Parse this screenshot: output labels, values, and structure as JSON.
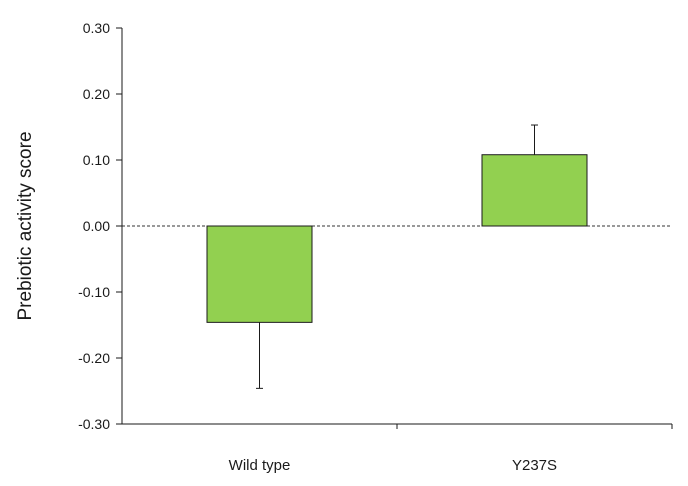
{
  "chart_data": {
    "type": "bar",
    "title": "",
    "xlabel": "",
    "ylabel": "Prebiotic activity score",
    "categories": [
      "Wild type",
      "Y237S"
    ],
    "values": [
      -0.146,
      0.108
    ],
    "error_bars": [
      0.1,
      0.045
    ],
    "ylim": [
      -0.3,
      0.3
    ],
    "yticks": [
      -0.3,
      -0.2,
      -0.1,
      0.0,
      0.1,
      0.2,
      0.3
    ],
    "ytick_labels": [
      "-0.30",
      "-0.20",
      "-0.10",
      "0.00",
      "0.10",
      "0.20",
      "0.30"
    ],
    "zero_line": "dashed",
    "grid": false,
    "legend": "none",
    "colors": {
      "bar_fill": "#92d050",
      "bar_stroke": "#1a1a1a",
      "axis": "#1a1a1a",
      "text": "#1a1a1a"
    }
  }
}
